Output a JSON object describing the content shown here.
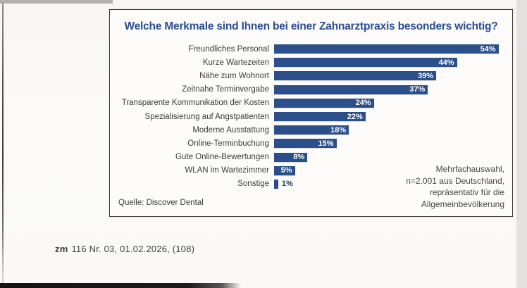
{
  "page": {
    "footer": {
      "journal": "zm",
      "issue_info": "116 Nr. 03, 01.02.2026, (108)"
    }
  },
  "chart_box": {
    "title": "Welche Merkmale sind Ihnen bei einer Zahnarztpraxis besonders wichtig?",
    "source": "Quelle: Discover Dental",
    "note_lines": [
      "Mehrfachauswahl,",
      "n=2.001 aus Deutschland,",
      "repräsentativ für die",
      "Allgemeinbevölkerung"
    ]
  },
  "colors": {
    "bar_blue": "#2b4f8a",
    "title_blue": "#2a4d92",
    "value_label_inside": "#ffffff",
    "value_label_outside": "#2f3b52"
  },
  "chart_data": {
    "type": "bar",
    "orientation": "horizontal",
    "title": "Welche Merkmale sind Ihnen bei einer Zahnarztpraxis besonders wichtig?",
    "categories": [
      "Freundliches Personal",
      "Kurze Wartezeiten",
      "Nähe zum Wohnort",
      "Zeitnahe Terminvergabe",
      "Transparente Kommunikation der Kosten",
      "Spezialisierung auf Angstpatienten",
      "Moderne Ausstattung",
      "Online-Terminbuchung",
      "Gute Online-Bewertungen",
      "WLAN im Wartezimmer",
      "Sonstige"
    ],
    "values": [
      54,
      44,
      39,
      37,
      24,
      22,
      18,
      15,
      8,
      5,
      1
    ],
    "value_suffix": "%",
    "xlim": [
      0,
      60
    ],
    "grid": false,
    "legend": false,
    "value_labels": "inside-end, outside for smallest bar",
    "source": "Quelle: Discover Dental",
    "annotation": "Mehrfachauswahl, n=2.001 aus Deutschland, repräsentativ für die Allgemeinbevölkerung"
  }
}
